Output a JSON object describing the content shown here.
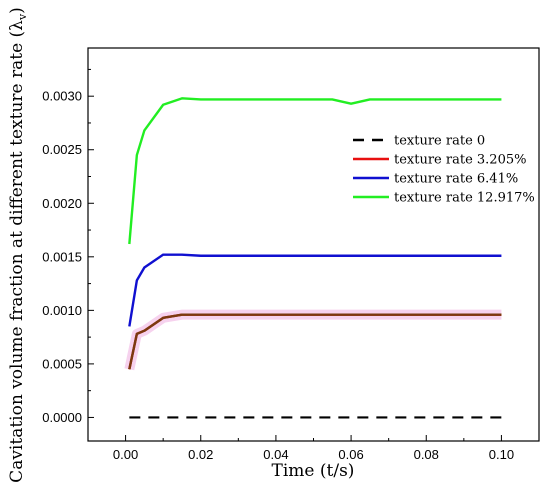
{
  "chart_data": {
    "type": "line",
    "xlabel": "Time (t/s)",
    "ylabel": "Cavitation volume fraction at different texture rate (λ",
    "ylabel_sub": "v",
    "ylabel_end": ")",
    "xlim": [
      -0.01,
      0.11
    ],
    "ylim": [
      -0.00022,
      0.00345
    ],
    "x_ticks": [
      0.0,
      0.02,
      0.04,
      0.06,
      0.08,
      0.1
    ],
    "x_tick_labels": [
      "0.00",
      "0.02",
      "0.04",
      "0.06",
      "0.08",
      "0.10"
    ],
    "y_ticks": [
      0.0,
      0.0005,
      0.001,
      0.0015,
      0.002,
      0.0025,
      0.003
    ],
    "y_tick_labels": [
      "0.0000",
      "0.0005",
      "0.0010",
      "0.0015",
      "0.0020",
      "0.0025",
      "0.0030"
    ],
    "grid": false,
    "legend_position": "right",
    "series": [
      {
        "name": "texture rate 0",
        "color": "#000000",
        "style": "dashed",
        "x": [
          0.001,
          0.1
        ],
        "y": [
          0.0,
          0.0
        ]
      },
      {
        "name": "texture rate 3.205%",
        "color": "#e81010",
        "style": "solid",
        "x": [
          0.001,
          0.003,
          0.005,
          0.01,
          0.015,
          0.02,
          0.03,
          0.04,
          0.05,
          0.06,
          0.07,
          0.08,
          0.09,
          0.1
        ],
        "y": [
          0.00045,
          0.00078,
          0.00081,
          0.00093,
          0.00096,
          0.00096,
          0.00096,
          0.00096,
          0.00096,
          0.00096,
          0.00096,
          0.00096,
          0.00096,
          0.00096
        ]
      },
      {
        "name": "texture rate 6.41%",
        "color": "#1010d0",
        "style": "solid",
        "x": [
          0.001,
          0.003,
          0.005,
          0.01,
          0.015,
          0.02,
          0.03,
          0.04,
          0.05,
          0.06,
          0.07,
          0.08,
          0.09,
          0.1
        ],
        "y": [
          0.00085,
          0.00128,
          0.0014,
          0.00152,
          0.00152,
          0.00151,
          0.00151,
          0.00151,
          0.00151,
          0.00151,
          0.00151,
          0.00151,
          0.00151,
          0.00151
        ]
      },
      {
        "name": "texture rate 12.917%",
        "color": "#22ee22",
        "style": "solid",
        "x": [
          0.001,
          0.003,
          0.005,
          0.01,
          0.015,
          0.02,
          0.03,
          0.04,
          0.05,
          0.055,
          0.06,
          0.065,
          0.07,
          0.08,
          0.09,
          0.1
        ],
        "y": [
          0.00162,
          0.00245,
          0.00268,
          0.00292,
          0.00298,
          0.00297,
          0.00297,
          0.00297,
          0.00297,
          0.00297,
          0.00293,
          0.00297,
          0.00297,
          0.00297,
          0.00297,
          0.00297
        ]
      }
    ],
    "overlay_series": {
      "color": "#7a3a10",
      "x": [
        0.001,
        0.003,
        0.005,
        0.01,
        0.015,
        0.02,
        0.03,
        0.04,
        0.05,
        0.06,
        0.07,
        0.08,
        0.09,
        0.1
      ],
      "y": [
        0.00045,
        0.00078,
        0.00081,
        0.00093,
        0.00096,
        0.00096,
        0.00096,
        0.00096,
        0.00096,
        0.00096,
        0.00096,
        0.00096,
        0.00096,
        0.00096
      ]
    }
  }
}
